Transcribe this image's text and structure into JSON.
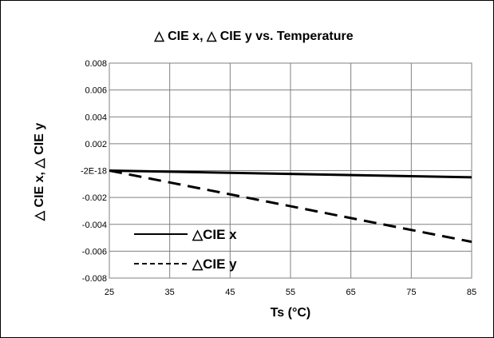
{
  "chart_data": {
    "type": "line",
    "title": "△ CIE x,  △ CIE y vs. Temperature",
    "xlabel": "Ts (°C)",
    "ylabel": "△ CIE x,  △ CIE y",
    "xlim": [
      25,
      85
    ],
    "ylim": [
      -0.008,
      0.008
    ],
    "x_ticks": [
      25,
      35,
      45,
      55,
      65,
      75,
      85
    ],
    "x_tick_labels": [
      "25",
      "35",
      "45",
      "55",
      "65",
      "75",
      "85"
    ],
    "y_ticks": [
      0.008,
      0.006,
      0.004,
      0.002,
      0,
      -0.002,
      -0.004,
      -0.006,
      -0.008
    ],
    "y_tick_labels": [
      "0.008",
      "0.006",
      "0.004",
      "0.002",
      "-2E-18",
      "-0.002",
      "-0.004",
      "-0.006",
      "-0.008"
    ],
    "grid": true,
    "legend_position": "inside-bottom-left",
    "series": [
      {
        "name": "△CIE x",
        "style": "solid",
        "color": "#000000",
        "x": [
          25,
          85
        ],
        "y": [
          0,
          -0.0005
        ]
      },
      {
        "name": "△CIE y",
        "style": "dashed",
        "color": "#000000",
        "x": [
          25,
          85
        ],
        "y": [
          0,
          -0.0053
        ]
      }
    ]
  }
}
